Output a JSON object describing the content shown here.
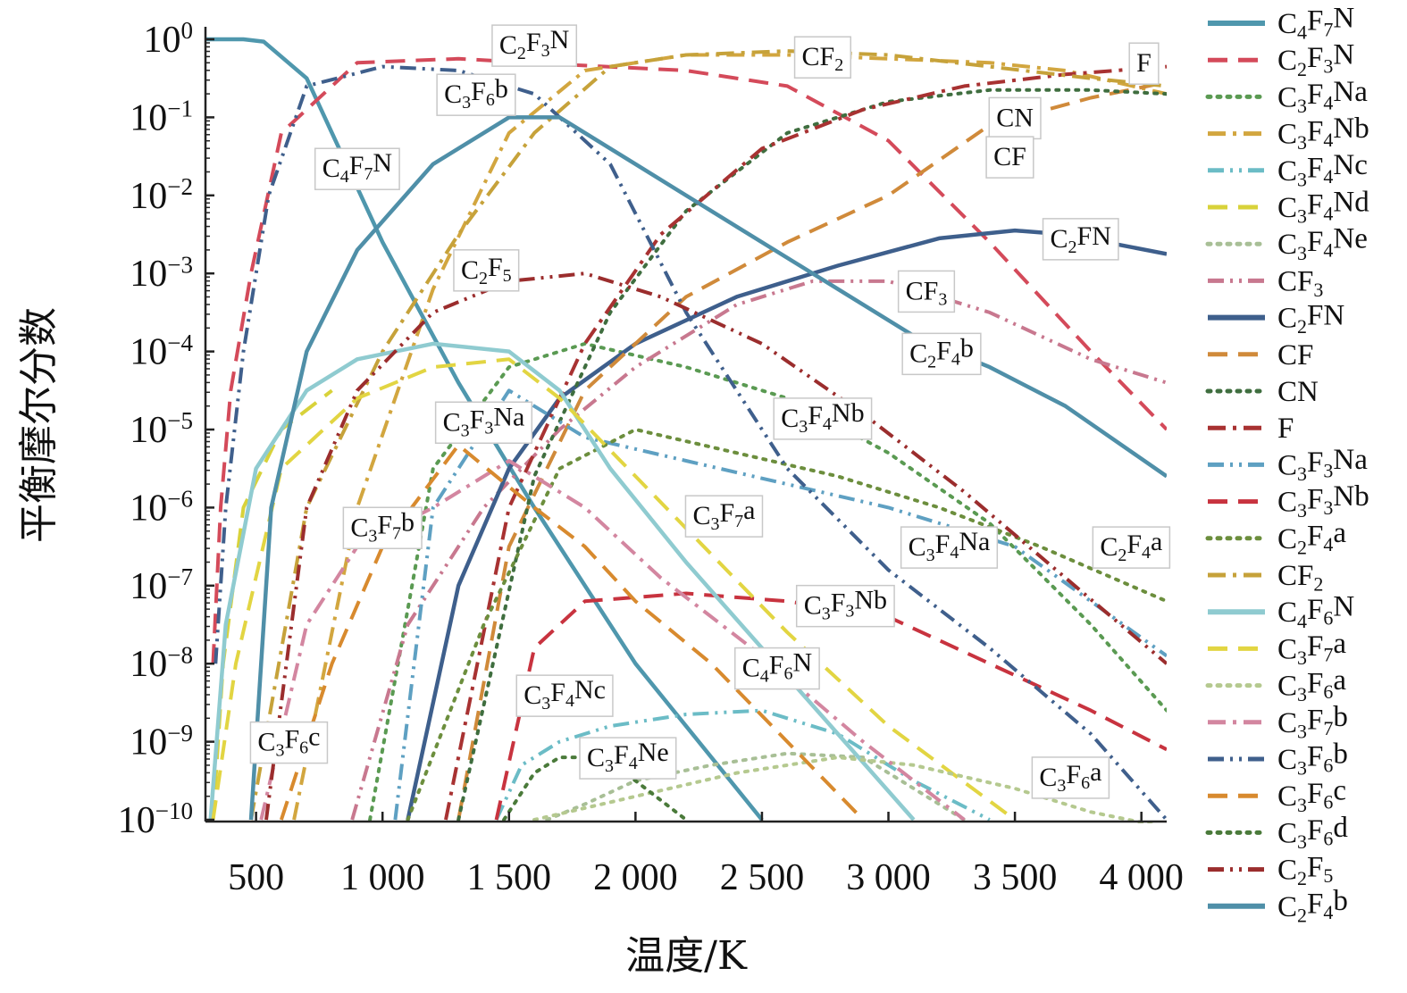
{
  "chart_data": {
    "type": "line",
    "title": "",
    "xlabel": "温度/K",
    "ylabel": "平衡摩尔分数",
    "xlim": [
      300,
      4100
    ],
    "ylim_exponent": [
      -10,
      0
    ],
    "yscale": "log",
    "x_ticks": [
      {
        "value": 500,
        "label": "500"
      },
      {
        "value": 1000,
        "label": "1 000"
      },
      {
        "value": 1500,
        "label": "1 500"
      },
      {
        "value": 2000,
        "label": "2 000"
      },
      {
        "value": 2500,
        "label": "2 500"
      },
      {
        "value": 3000,
        "label": "3 000"
      },
      {
        "value": 3500,
        "label": "3 500"
      },
      {
        "value": 4000,
        "label": "4 000"
      }
    ],
    "y_ticks": [
      {
        "exp": 0,
        "base": "10",
        "sup": "0"
      },
      {
        "exp": -1,
        "base": "10",
        "sup": "−1"
      },
      {
        "exp": -2,
        "base": "10",
        "sup": "−2"
      },
      {
        "exp": -3,
        "base": "10",
        "sup": "−3"
      },
      {
        "exp": -4,
        "base": "10",
        "sup": "−4"
      },
      {
        "exp": -5,
        "base": "10",
        "sup": "−5"
      },
      {
        "exp": -6,
        "base": "10",
        "sup": "−6"
      },
      {
        "exp": -7,
        "base": "10",
        "sup": "−7"
      },
      {
        "exp": -8,
        "base": "10",
        "sup": "−8"
      },
      {
        "exp": -9,
        "base": "10",
        "sup": "−9"
      },
      {
        "exp": -10,
        "base": "10",
        "sup": "−10"
      }
    ],
    "legend_position": "right",
    "series": [
      {
        "name": [
          "C",
          "4",
          "F",
          "7",
          "N"
        ],
        "color": "#4f97ad",
        "dash": "solid",
        "x": [
          300,
          450,
          530,
          700,
          1000,
          1300,
          1600,
          2000,
          2500
        ],
        "log10y": [
          0,
          0,
          -0.03,
          -0.5,
          -2.6,
          -4.4,
          -6.0,
          -8.0,
          -10.0
        ]
      },
      {
        "name": [
          "C",
          "2",
          "F",
          "3",
          "N"
        ],
        "color": "#d44a5a",
        "dash": "dash",
        "x": [
          330,
          360,
          400,
          480,
          600,
          900,
          1300,
          1700,
          2200,
          2600,
          3000,
          3400,
          3800,
          4100
        ],
        "log10y": [
          -8.0,
          -6.0,
          -4.5,
          -3.0,
          -1.2,
          -0.3,
          -0.25,
          -0.32,
          -0.4,
          -0.6,
          -1.3,
          -2.6,
          -4.0,
          -5.0
        ]
      },
      {
        "name": [
          "C",
          "3",
          "F",
          "4",
          "Na"
        ],
        "color": "#5a9a52",
        "dash": "dot",
        "x": [
          950,
          1200,
          1500,
          1800,
          2200,
          2600,
          3000,
          3400,
          3800,
          4100
        ],
        "log10y": [
          -10.0,
          -5.5,
          -4.2,
          -3.9,
          -4.2,
          -4.6,
          -5.3,
          -6.2,
          -7.5,
          -8.6
        ]
      },
      {
        "name": [
          "C",
          "3",
          "F",
          "4",
          "Nb"
        ],
        "color": "#d2a63f",
        "dash": "dashdot",
        "x": [
          650,
          900,
          1200,
          1500,
          1800,
          2200,
          2600,
          3000,
          3400,
          3700,
          4100
        ],
        "log10y": [
          -10.0,
          -6.0,
          -3.2,
          -1.2,
          -0.4,
          -0.2,
          -0.2,
          -0.25,
          -0.3,
          -0.4,
          -0.7
        ]
      },
      {
        "name": [
          "C",
          "3",
          "F",
          "4",
          "Nc"
        ],
        "color": "#6bbcc6",
        "dash": "dashdotdot",
        "x": [
          1450,
          1550,
          1700,
          1900,
          2200,
          2500,
          2800,
          3100,
          3400
        ],
        "log10y": [
          -10.0,
          -9.3,
          -9.0,
          -8.8,
          -8.65,
          -8.6,
          -8.9,
          -9.5,
          -10.0
        ]
      },
      {
        "name": [
          "C",
          "3",
          "F",
          "4",
          "Nd"
        ],
        "color": "#d8d23a",
        "dash": "dash",
        "x": [
          330,
          370,
          450,
          600,
          800
        ],
        "log10y": [
          -10.0,
          -8.0,
          -6.0,
          -5.0,
          -4.5
        ]
      },
      {
        "name": [
          "C",
          "3",
          "F",
          "4",
          "Ne"
        ],
        "color": "#a8bf96",
        "dash": "dot",
        "x": [
          1650,
          1800,
          2000,
          2300,
          2600,
          2900,
          3100,
          3300
        ],
        "log10y": [
          -10.0,
          -9.8,
          -9.5,
          -9.3,
          -9.15,
          -9.2,
          -9.6,
          -10.0
        ]
      },
      {
        "name": [
          "CF",
          "3",
          ""
        ],
        "color": "#c8788f",
        "dash": "dashdotdot",
        "x": [
          880,
          1100,
          1400,
          1700,
          2000,
          2400,
          2700,
          3000,
          3400,
          3800,
          4100
        ],
        "log10y": [
          -10.0,
          -7.5,
          -6.0,
          -5.0,
          -4.2,
          -3.4,
          -3.1,
          -3.1,
          -3.5,
          -4.1,
          -4.4
        ]
      },
      {
        "name": [
          "C",
          "2",
          "FN"
        ],
        "color": "#3e5f8c",
        "dash": "solid",
        "x": [
          1100,
          1300,
          1500,
          1700,
          2000,
          2400,
          2800,
          3200,
          3500,
          3700,
          4100
        ],
        "log10y": [
          -10.0,
          -7.0,
          -5.5,
          -4.6,
          -3.9,
          -3.3,
          -2.9,
          -2.55,
          -2.45,
          -2.5,
          -2.75
        ]
      },
      {
        "name": [
          "CF"
        ],
        "color": "#d08a3a",
        "dash": "dash",
        "x": [
          1300,
          1500,
          1800,
          2200,
          2600,
          3000,
          3400,
          3800,
          4100
        ],
        "log10y": [
          -10.0,
          -6.5,
          -4.5,
          -3.3,
          -2.6,
          -2.0,
          -1.1,
          -0.75,
          -0.55
        ]
      },
      {
        "name": [
          "CN"
        ],
        "color": "#3f6e3f",
        "dash": "dot",
        "x": [
          1300,
          1600,
          1900,
          2200,
          2600,
          3000,
          3400,
          3800,
          4100
        ],
        "log10y": [
          -10.0,
          -5.6,
          -3.5,
          -2.2,
          -1.2,
          -0.8,
          -0.65,
          -0.65,
          -0.7
        ]
      },
      {
        "name": [
          "F"
        ],
        "color": "#a83232",
        "dash": "dashdot",
        "x": [
          1250,
          1500,
          1800,
          2100,
          2500,
          2900,
          3300,
          3700,
          4100
        ],
        "log10y": [
          -10.0,
          -6.0,
          -3.9,
          -2.5,
          -1.4,
          -0.9,
          -0.6,
          -0.45,
          -0.35
        ]
      },
      {
        "name": [
          "C",
          "3",
          "F",
          "3",
          "Na"
        ],
        "color": "#5ea0c2",
        "dash": "dashdotdot",
        "x": [
          1050,
          1200,
          1500,
          1800,
          2200,
          2600,
          3000,
          3500,
          4100
        ],
        "log10y": [
          -10.0,
          -6.0,
          -4.5,
          -5.1,
          -5.4,
          -5.7,
          -6.0,
          -6.5,
          -7.9
        ]
      },
      {
        "name": [
          "C",
          "3",
          "F",
          "3",
          "Nb"
        ],
        "color": "#c8333f",
        "dash": "dash",
        "x": [
          1450,
          1600,
          1800,
          2200,
          2600,
          3000,
          3400,
          3800,
          4100
        ],
        "log10y": [
          -10.0,
          -7.8,
          -7.2,
          -7.1,
          -7.2,
          -7.4,
          -8.0,
          -8.6,
          -9.1
        ]
      },
      {
        "name": [
          "C",
          "2",
          "F",
          "4",
          "a"
        ],
        "color": "#6c8e3d",
        "dash": "dot",
        "x": [
          1100,
          1400,
          1700,
          2000,
          2400,
          2800,
          3200,
          3600,
          4100
        ],
        "log10y": [
          -10.0,
          -7.5,
          -5.5,
          -5.0,
          -5.3,
          -5.6,
          -6.0,
          -6.5,
          -7.2
        ]
      },
      {
        "name": [
          "CF",
          "2",
          ""
        ],
        "color": "#c6a23a",
        "dash": "dashdot",
        "x": [
          480,
          700,
          1000,
          1300,
          1600,
          1900,
          2200,
          2600,
          3000,
          3400,
          3800,
          4100
        ],
        "log10y": [
          -10.0,
          -6.0,
          -4.0,
          -2.5,
          -1.2,
          -0.35,
          -0.2,
          -0.15,
          -0.2,
          -0.35,
          -0.5,
          -0.6
        ]
      },
      {
        "name": [
          "C",
          "4",
          "F",
          "6",
          "N"
        ],
        "color": "#8fcbd0",
        "dash": "solid",
        "x": [
          320,
          380,
          500,
          700,
          900,
          1200,
          1500,
          1700,
          1900,
          2200,
          2500,
          2800,
          3100
        ],
        "log10y": [
          -10.0,
          -7.5,
          -5.5,
          -4.5,
          -4.1,
          -3.9,
          -4.0,
          -4.5,
          -5.5,
          -6.7,
          -7.8,
          -8.9,
          -10.0
        ]
      },
      {
        "name": [
          "C",
          "3",
          "F",
          "7",
          "a"
        ],
        "color": "#e2d542",
        "dash": "dash",
        "x": [
          330,
          420,
          600,
          900,
          1200,
          1500,
          1700,
          2000,
          2300,
          2600,
          3000,
          3500
        ],
        "log10y": [
          -10.0,
          -8.0,
          -5.5,
          -4.6,
          -4.2,
          -4.1,
          -4.6,
          -5.6,
          -6.6,
          -7.6,
          -8.8,
          -10.0
        ]
      },
      {
        "name": [
          "C",
          "3",
          "F",
          "6",
          "a"
        ],
        "color": "#b5c98f",
        "dash": "dot",
        "x": [
          1600,
          2000,
          2400,
          2800,
          3100,
          3500,
          3800,
          4100
        ],
        "log10y": [
          -10.0,
          -9.7,
          -9.4,
          -9.2,
          -9.3,
          -9.6,
          -9.9,
          -10.1
        ]
      },
      {
        "name": [
          "C",
          "3",
          "F",
          "7",
          "b"
        ],
        "color": "#d386a0",
        "dash": "dashdot",
        "x": [
          520,
          700,
          900,
          1200,
          1500,
          1800,
          2100,
          2500,
          2900,
          3300
        ],
        "log10y": [
          -10.0,
          -7.5,
          -6.5,
          -6.0,
          -5.4,
          -6.0,
          -6.9,
          -7.9,
          -9.0,
          -10.0
        ]
      },
      {
        "name": [
          "C",
          "3",
          "F",
          "6",
          "b"
        ],
        "color": "#3f5f8c",
        "dash": "dashdotdot",
        "x": [
          340,
          380,
          450,
          550,
          700,
          1000,
          1300,
          1600,
          1900,
          2200,
          2600,
          3000,
          3400,
          3800,
          4100
        ],
        "log10y": [
          -8.0,
          -6.0,
          -4.0,
          -2.0,
          -0.6,
          -0.35,
          -0.4,
          -0.7,
          -1.6,
          -3.5,
          -5.5,
          -6.8,
          -7.8,
          -8.9,
          -10.0
        ]
      },
      {
        "name": [
          "C",
          "3",
          "F",
          "6",
          "c"
        ],
        "color": "#d88a2e",
        "dash": "dash",
        "x": [
          600,
          800,
          1000,
          1300,
          1600,
          1800,
          2000,
          2300,
          2600,
          2900
        ],
        "log10y": [
          -10.0,
          -8.0,
          -6.5,
          -5.2,
          -6.0,
          -6.5,
          -7.2,
          -8.0,
          -9.0,
          -10.0
        ]
      },
      {
        "name": [
          "C",
          "3",
          "F",
          "6",
          "d"
        ],
        "color": "#4a7a3a",
        "dash": "dot",
        "x": [
          1480,
          1600,
          1700,
          1850,
          2000,
          2200
        ],
        "log10y": [
          -10.0,
          -9.4,
          -9.2,
          -9.2,
          -9.5,
          -10.0
        ]
      },
      {
        "name": [
          "C",
          "2",
          "F",
          "5"
        ],
        "color": "#9b2d2d",
        "dash": "dashdotdot",
        "x": [
          540,
          700,
          900,
          1200,
          1500,
          1800,
          2100,
          2500,
          2900,
          3300,
          3700,
          4100
        ],
        "log10y": [
          -10.0,
          -6.0,
          -4.5,
          -3.5,
          -3.1,
          -3.0,
          -3.3,
          -3.9,
          -4.8,
          -5.8,
          -6.9,
          -8.0
        ]
      },
      {
        "name": [
          "C",
          "2",
          "F",
          "4",
          "b"
        ],
        "color": "#4f8fa8",
        "dash": "solid",
        "x": [
          480,
          560,
          700,
          900,
          1200,
          1500,
          1700,
          2000,
          2400,
          2800,
          3100,
          3400,
          3700,
          4100
        ],
        "log10y": [
          -10.0,
          -6.0,
          -4.0,
          -2.7,
          -1.6,
          -1.0,
          -1.0,
          -1.6,
          -2.4,
          -3.2,
          -3.8,
          -4.2,
          -4.7,
          -5.6
        ]
      }
    ],
    "annotations": [
      {
        "text": [
          "C",
          "2",
          "F",
          "3",
          "N"
        ],
        "x": 1600,
        "log10y": -0.07
      },
      {
        "text": [
          "C",
          "3",
          "F",
          "6",
          "b"
        ],
        "x": 1370,
        "log10y": -0.7
      },
      {
        "text": [
          "C",
          "4",
          "F",
          "7",
          "N"
        ],
        "x": 900,
        "log10y": -1.65
      },
      {
        "text": [
          "CF",
          "2",
          ""
        ],
        "x": 2740,
        "log10y": -0.22
      },
      {
        "text": [
          "F"
        ],
        "x": 4010,
        "log10y": -0.3
      },
      {
        "text": [
          "CN"
        ],
        "x": 3500,
        "log10y": -1.0
      },
      {
        "text": [
          "CF"
        ],
        "x": 3480,
        "log10y": -1.5
      },
      {
        "text": [
          "C",
          "2",
          "FN"
        ],
        "x": 3760,
        "log10y": -2.55
      },
      {
        "text": [
          "C",
          "2",
          "F",
          "5"
        ],
        "x": 1410,
        "log10y": -2.95
      },
      {
        "text": [
          "CF",
          "3",
          ""
        ],
        "x": 3150,
        "log10y": -3.22
      },
      {
        "text": [
          "C",
          "2",
          "F",
          "4",
          "b"
        ],
        "x": 3210,
        "log10y": -4.02
      },
      {
        "text": [
          "C",
          "3",
          "F",
          "3",
          "Na"
        ],
        "x": 1400,
        "log10y": -4.9
      },
      {
        "text": [
          "C",
          "3",
          "F",
          "4",
          "Nb"
        ],
        "x": 2740,
        "log10y": -4.85
      },
      {
        "text": [
          "C",
          "3",
          "F",
          "7",
          "b"
        ],
        "x": 1000,
        "log10y": -6.25
      },
      {
        "text": [
          "C",
          "3",
          "F",
          "7",
          "a"
        ],
        "x": 2350,
        "log10y": -6.1
      },
      {
        "text": [
          "C",
          "3",
          "F",
          "4",
          "Na"
        ],
        "x": 3240,
        "log10y": -6.5
      },
      {
        "text": [
          "C",
          "2",
          "F",
          "4",
          "a"
        ],
        "x": 3960,
        "log10y": -6.5
      },
      {
        "text": [
          "C",
          "3",
          "F",
          "3",
          "Nb"
        ],
        "x": 2830,
        "log10y": -7.25
      },
      {
        "text": [
          "C",
          "4",
          "F",
          "6",
          "N"
        ],
        "x": 2560,
        "log10y": -8.05
      },
      {
        "text": [
          "C",
          "3",
          "F",
          "4",
          "Nc"
        ],
        "x": 1720,
        "log10y": -8.4
      },
      {
        "text": [
          "C",
          "3",
          "F",
          "6",
          "c"
        ],
        "x": 630,
        "log10y": -9.0
      },
      {
        "text": [
          "C",
          "3",
          "F",
          "4",
          "Ne"
        ],
        "x": 1970,
        "log10y": -9.2
      },
      {
        "text": [
          "C",
          "3",
          "F",
          "6",
          "a"
        ],
        "x": 3720,
        "log10y": -9.45
      }
    ]
  }
}
